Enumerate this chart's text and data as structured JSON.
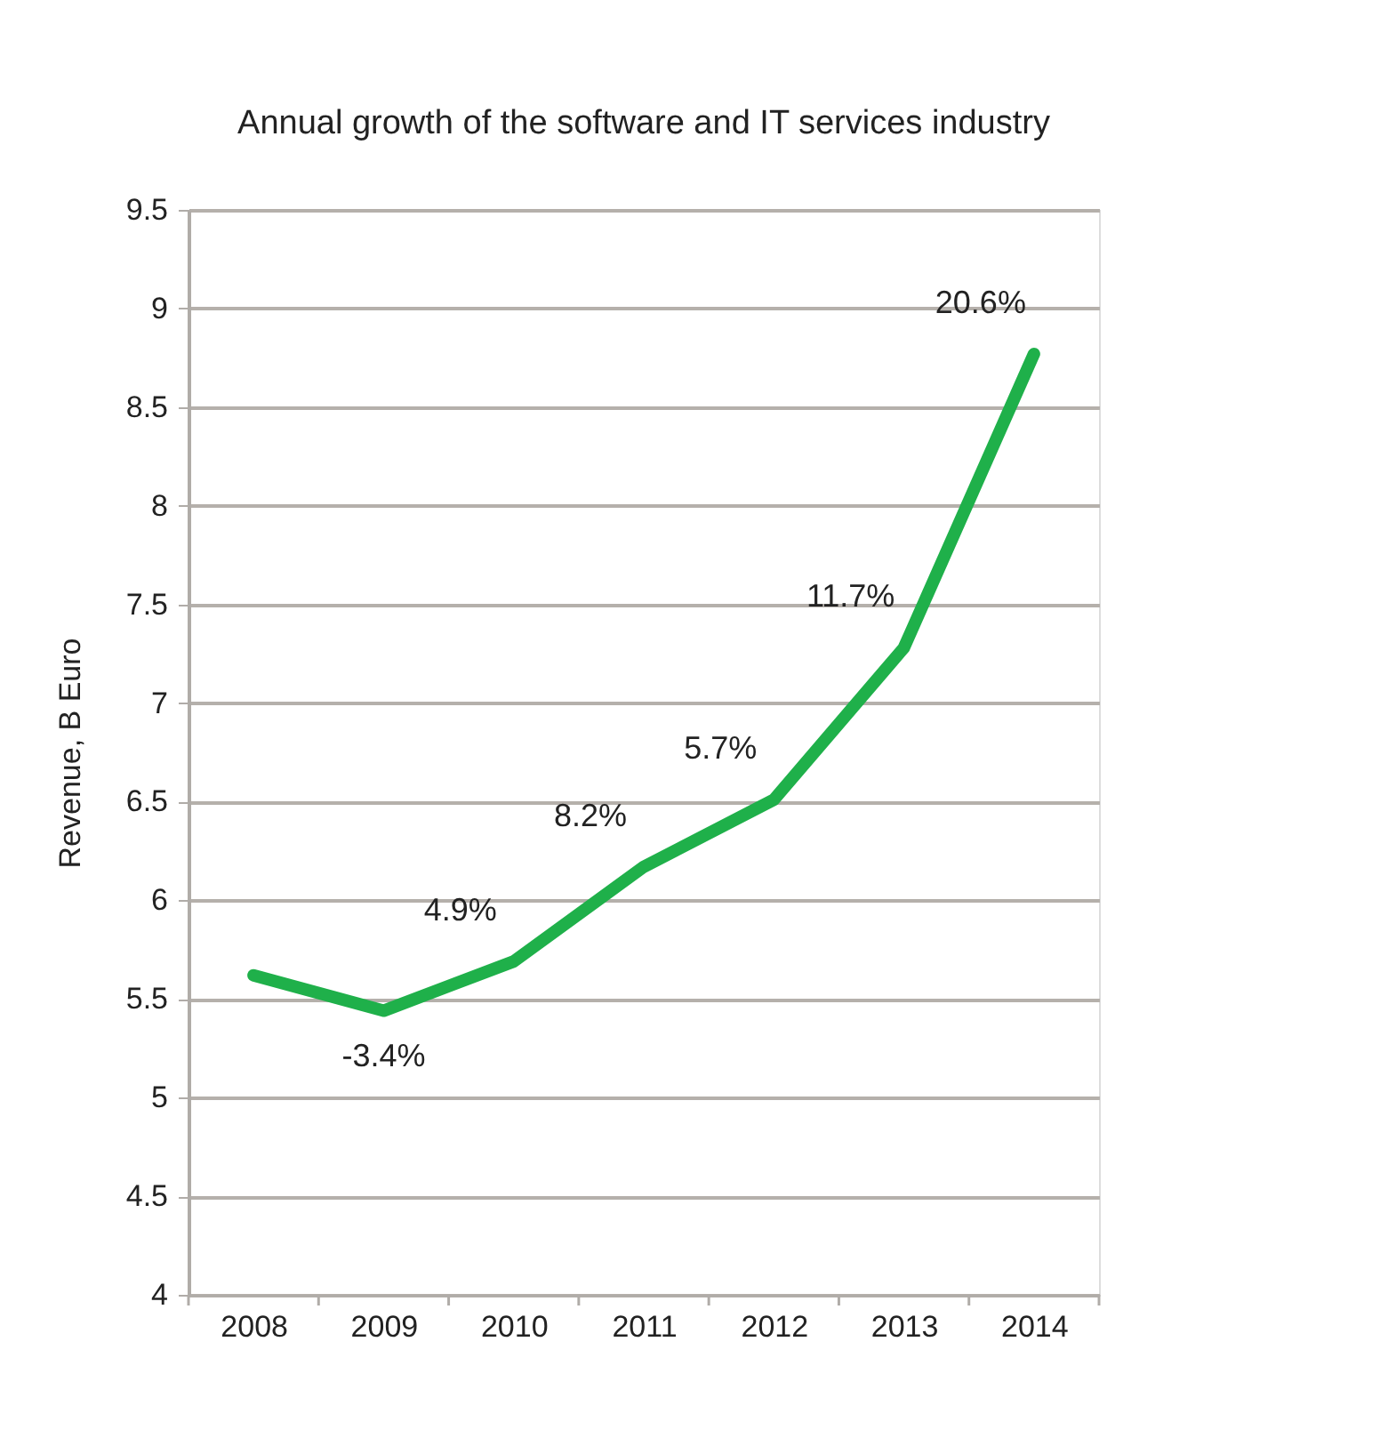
{
  "chart_data": {
    "type": "line",
    "title": "Annual growth of the software and IT services industry",
    "ylabel": "Revenue, B Euro",
    "categories": [
      "2008",
      "2009",
      "2010",
      "2011",
      "2012",
      "2013",
      "2014"
    ],
    "series": [
      {
        "color": "#1fb04a",
        "values": [
          5.62,
          5.44,
          5.69,
          6.17,
          6.51,
          7.28,
          8.77
        ]
      }
    ],
    "ylim": [
      4,
      9.5
    ],
    "yticks": [
      4,
      4.5,
      5,
      5.5,
      6,
      6.5,
      7,
      7.5,
      8,
      8.5,
      9,
      9.5
    ],
    "grid": "y",
    "line_style": "solid",
    "annotations": [
      "-3.4%",
      "4.9%",
      "8.2%",
      "5.7%",
      "11.7%",
      "20.6%"
    ]
  }
}
